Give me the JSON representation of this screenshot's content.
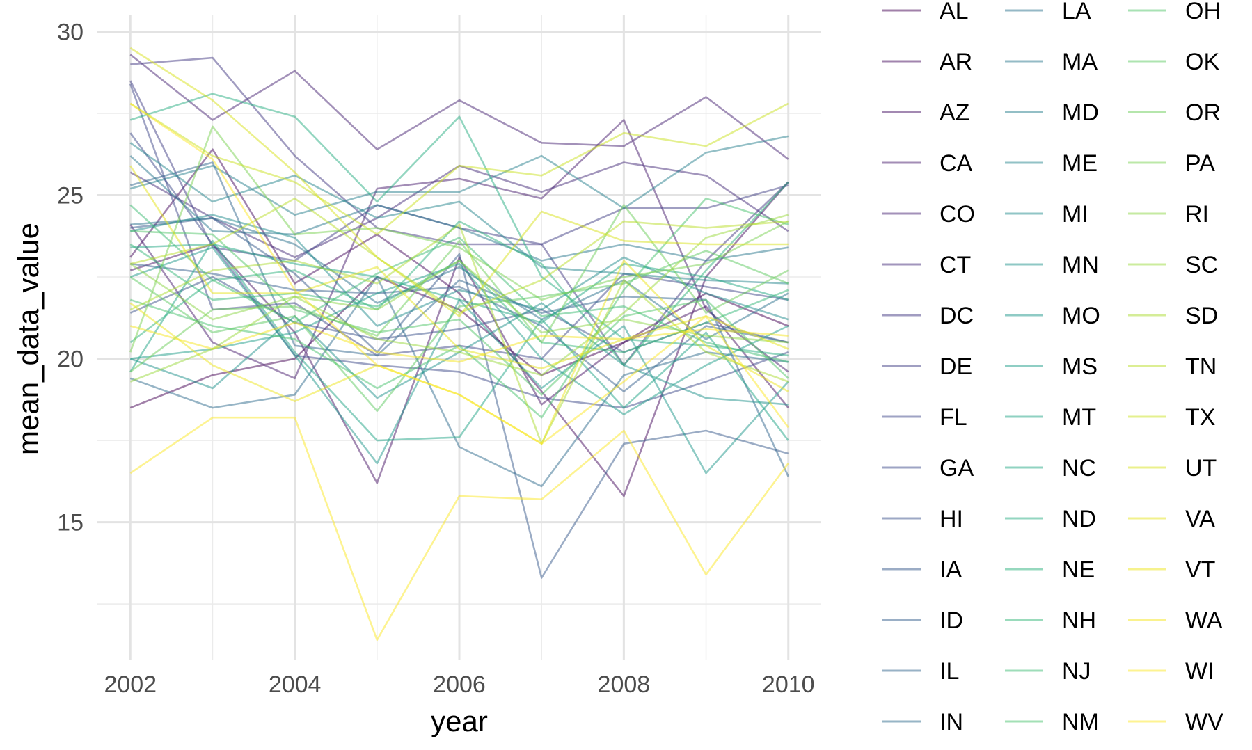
{
  "chart_data": {
    "type": "line",
    "title": "",
    "xlabel": "year",
    "ylabel": "mean_data_value",
    "x": [
      2002,
      2003,
      2004,
      2005,
      2006,
      2007,
      2008,
      2009,
      2010
    ],
    "xlim": [
      2001.6,
      2010.4
    ],
    "ylim": [
      10.8,
      30.5
    ],
    "x_ticks": [
      2002,
      2004,
      2006,
      2008,
      2010
    ],
    "y_ticks": [
      15,
      20,
      25,
      30
    ],
    "y_minor_ticks": [
      12.5,
      17.5,
      22.5,
      27.5
    ],
    "grid": true,
    "legend_position": "right",
    "legend_columns": 3,
    "line_opacity": 0.5,
    "color_scale": "viridis",
    "series": [
      {
        "name": "AL",
        "color": "#440154",
        "values": [
          18.5,
          19.5,
          20.0,
          22.5,
          21.5,
          19.5,
          20.5,
          22.0,
          21.0
        ]
      },
      {
        "name": "AR",
        "color": "#460a5d",
        "values": [
          23.1,
          26.4,
          22.3,
          23.8,
          22.0,
          19.0,
          15.8,
          22.5,
          25.4
        ]
      },
      {
        "name": "AZ",
        "color": "#471365",
        "values": [
          22.7,
          23.5,
          20.8,
          16.2,
          23.1,
          18.6,
          20.5,
          21.6,
          18.5
        ]
      },
      {
        "name": "CA",
        "color": "#481b6d",
        "values": [
          24.1,
          20.5,
          19.4,
          25.2,
          25.5,
          24.9,
          27.3,
          21.5,
          19.6
        ]
      },
      {
        "name": "CO",
        "color": "#472374",
        "values": [
          29.3,
          27.3,
          28.8,
          26.4,
          27.9,
          26.6,
          26.5,
          28.0,
          26.1
        ]
      },
      {
        "name": "CT",
        "color": "#462b7a",
        "values": [
          25.7,
          24.3,
          23.1,
          24.3,
          25.9,
          25.1,
          26.0,
          25.6,
          23.9
        ]
      },
      {
        "name": "DC",
        "color": "#443a83",
        "values": [
          29.0,
          29.2,
          26.2,
          24.0,
          23.5,
          23.5,
          19.8,
          23.0,
          25.4
        ]
      },
      {
        "name": "DE",
        "color": "#424086",
        "values": [
          28.5,
          23.4,
          23.0,
          24.7,
          24.0,
          23.5,
          24.6,
          24.6,
          25.3
        ]
      },
      {
        "name": "FL",
        "color": "#3f4889",
        "values": [
          28.4,
          21.5,
          21.7,
          20.1,
          20.4,
          20.0,
          22.6,
          22.2,
          21.8
        ]
      },
      {
        "name": "GA",
        "color": "#3e4989",
        "values": [
          26.9,
          23.5,
          20.1,
          19.8,
          19.6,
          18.8,
          18.5,
          19.3,
          20.2
        ]
      },
      {
        "name": "HI",
        "color": "#3b528b",
        "values": [
          21.4,
          22.5,
          21.1,
          20.6,
          20.9,
          21.5,
          20.2,
          21.1,
          20.5
        ]
      },
      {
        "name": "IA",
        "color": "#38598c",
        "values": [
          24.0,
          24.3,
          22.6,
          20.2,
          23.2,
          13.3,
          17.4,
          17.8,
          17.1
        ]
      },
      {
        "name": "ID",
        "color": "#355f8d",
        "values": [
          22.9,
          22.6,
          22.1,
          22.0,
          22.2,
          21.0,
          19.0,
          21.0,
          20.5
        ]
      },
      {
        "name": "IL",
        "color": "#32658e",
        "values": [
          25.3,
          26.0,
          20.4,
          20.1,
          22.4,
          21.4,
          21.9,
          21.8,
          16.4
        ]
      },
      {
        "name": "IN",
        "color": "#2f6c8e",
        "values": [
          19.4,
          18.5,
          18.9,
          22.5,
          17.3,
          16.1,
          19.5,
          20.2,
          19.9
        ]
      },
      {
        "name": "LA",
        "color": "#2c728e",
        "values": [
          24.1,
          24.3,
          23.5,
          21.7,
          22.8,
          21.2,
          22.4,
          20.6,
          22.0
        ]
      },
      {
        "name": "MA",
        "color": "#2a788e",
        "values": [
          26.2,
          23.9,
          23.8,
          24.7,
          24.0,
          23.0,
          23.5,
          23.0,
          23.4
        ]
      },
      {
        "name": "MD",
        "color": "#277f8e",
        "values": [
          25.2,
          25.9,
          24.4,
          25.1,
          25.1,
          26.2,
          24.6,
          26.3,
          26.8
        ]
      },
      {
        "name": "ME",
        "color": "#25858e",
        "values": [
          26.6,
          24.8,
          25.6,
          24.3,
          24.8,
          22.8,
          22.6,
          22.4,
          22.3
        ]
      },
      {
        "name": "MI",
        "color": "#228b8d",
        "values": [
          23.9,
          24.4,
          23.7,
          21.0,
          22.1,
          21.5,
          23.1,
          22.0,
          21.2
        ]
      },
      {
        "name": "MN",
        "color": "#20928c",
        "values": [
          20.0,
          19.1,
          21.3,
          18.8,
          20.2,
          21.7,
          19.8,
          18.8,
          18.6
        ]
      },
      {
        "name": "MO",
        "color": "#1f988b",
        "values": [
          22.5,
          23.4,
          20.1,
          16.8,
          21.8,
          19.1,
          21.0,
          16.5,
          19.3
        ]
      },
      {
        "name": "MS",
        "color": "#1f9e89",
        "values": [
          20.0,
          20.3,
          20.8,
          22.0,
          22.9,
          20.0,
          18.3,
          19.8,
          21.0
        ]
      },
      {
        "name": "MT",
        "color": "#20a486",
        "values": [
          19.6,
          23.6,
          20.2,
          17.5,
          17.6,
          21.2,
          18.5,
          20.8,
          17.5
        ]
      },
      {
        "name": "NC",
        "color": "#22a884",
        "values": [
          23.4,
          23.5,
          22.9,
          22.5,
          21.8,
          21.1,
          22.9,
          22.5,
          21.8
        ]
      },
      {
        "name": "ND",
        "color": "#27ad81",
        "values": [
          27.3,
          28.1,
          27.4,
          24.8,
          27.4,
          22.5,
          20.6,
          20.4,
          20.1
        ]
      },
      {
        "name": "NE",
        "color": "#2db27d",
        "values": [
          20.5,
          22.4,
          22.7,
          21.5,
          24.2,
          22.9,
          19.8,
          22.7,
          25.4
        ]
      },
      {
        "name": "NH",
        "color": "#35b779",
        "values": [
          23.5,
          21.8,
          22.0,
          21.6,
          23.0,
          20.5,
          20.2,
          21.1,
          22.1
        ]
      },
      {
        "name": "NJ",
        "color": "#3dbc74",
        "values": [
          24.7,
          22.4,
          21.1,
          22.6,
          23.7,
          21.3,
          21.6,
          20.5,
          19.9
        ]
      },
      {
        "name": "NM",
        "color": "#48c16e",
        "values": [
          21.8,
          21.0,
          20.6,
          19.1,
          20.4,
          18.2,
          22.1,
          24.9,
          24.1
        ]
      },
      {
        "name": "OH",
        "color": "#52c569",
        "values": [
          23.9,
          23.8,
          21.5,
          20.8,
          21.2,
          18.9,
          21.3,
          21.8,
          19.4
        ]
      },
      {
        "name": "OK",
        "color": "#5ec962",
        "values": [
          22.5,
          20.8,
          21.3,
          18.4,
          21.6,
          21.9,
          22.3,
          23.3,
          22.3
        ]
      },
      {
        "name": "OR",
        "color": "#6ccd5a",
        "values": [
          19.6,
          21.5,
          21.6,
          20.7,
          23.6,
          20.5,
          24.7,
          21.4,
          22.7
        ]
      },
      {
        "name": "PA",
        "color": "#7ad151",
        "values": [
          20.2,
          27.1,
          23.8,
          24.0,
          23.4,
          21.8,
          22.5,
          22.9,
          24.2
        ]
      },
      {
        "name": "RI",
        "color": "#8bd646",
        "values": [
          22.9,
          21.2,
          21.9,
          21.5,
          23.0,
          20.8,
          21.2,
          20.7,
          20.5
        ]
      },
      {
        "name": "SC",
        "color": "#9ad93d",
        "values": [
          19.3,
          20.3,
          21.9,
          20.6,
          20.2,
          19.5,
          21.4,
          23.7,
          24.4
        ]
      },
      {
        "name": "SD",
        "color": "#abdc32",
        "values": [
          21.5,
          22.7,
          23.0,
          22.3,
          24.1,
          17.4,
          22.4,
          20.2,
          19.3
        ]
      },
      {
        "name": "TN",
        "color": "#bade28",
        "values": [
          22.9,
          23.5,
          24.9,
          23.1,
          21.4,
          22.4,
          24.2,
          24.0,
          24.2
        ]
      },
      {
        "name": "TX",
        "color": "#cae11f",
        "values": [
          27.8,
          26.2,
          25.4,
          23.8,
          25.9,
          25.6,
          26.9,
          26.5,
          27.8
        ]
      },
      {
        "name": "UT",
        "color": "#d8e219",
        "values": [
          29.5,
          27.9,
          25.7,
          23.1,
          21.3,
          24.5,
          23.6,
          23.5,
          23.5
        ]
      },
      {
        "name": "VA",
        "color": "#e5e419",
        "values": [
          25.9,
          22.0,
          22.0,
          22.8,
          20.3,
          19.7,
          20.6,
          21.3,
          20.3
        ]
      },
      {
        "name": "VT",
        "color": "#eee51c",
        "values": [
          21.7,
          19.8,
          18.7,
          19.8,
          18.9,
          17.4,
          23.0,
          20.4,
          19.0
        ]
      },
      {
        "name": "WA",
        "color": "#f5e61e",
        "values": [
          21.0,
          20.3,
          21.1,
          20.2,
          19.9,
          20.7,
          20.6,
          20.9,
          20.7
        ]
      },
      {
        "name": "WI",
        "color": "#fbe723",
        "values": [
          16.5,
          18.2,
          18.2,
          11.4,
          15.8,
          15.7,
          17.8,
          13.4,
          16.8
        ]
      },
      {
        "name": "WV",
        "color": "#fde725",
        "values": [
          27.8,
          26.1,
          22.1,
          19.8,
          18.9,
          17.4,
          19.3,
          21.3,
          17.9
        ]
      }
    ]
  }
}
